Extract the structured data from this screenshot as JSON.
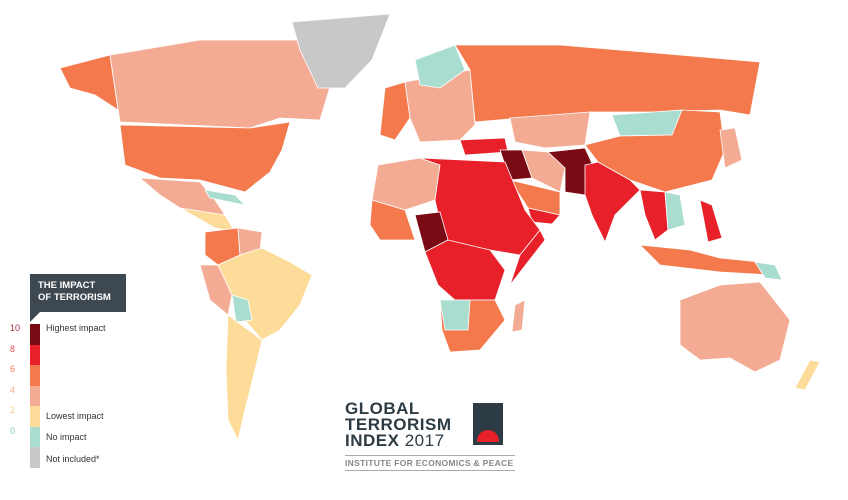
{
  "colors": {
    "highest": "#7a0b14",
    "high": "#e8202a",
    "mid": "#f47a4e",
    "low": "#f4ab93",
    "lowest": "#fddc9a",
    "none": "#a8ddd0",
    "not_included": "#c8c8c8"
  },
  "legend": {
    "title_line1": "THE IMPACT",
    "title_line2": "OF TERRORISM",
    "ticks": [
      "10",
      "8",
      "6",
      "4",
      "2",
      "0"
    ],
    "labels": {
      "highest": "Highest impact",
      "lowest": "Lowest impact",
      "none": "No impact",
      "not_included": "Not included*"
    }
  },
  "logo": {
    "line1": "GLOBAL",
    "line2": "TERRORISM",
    "line3": "INDEX",
    "year": "2017",
    "institute": "INSTITUTE FOR ECONOMICS & PEACE"
  }
}
